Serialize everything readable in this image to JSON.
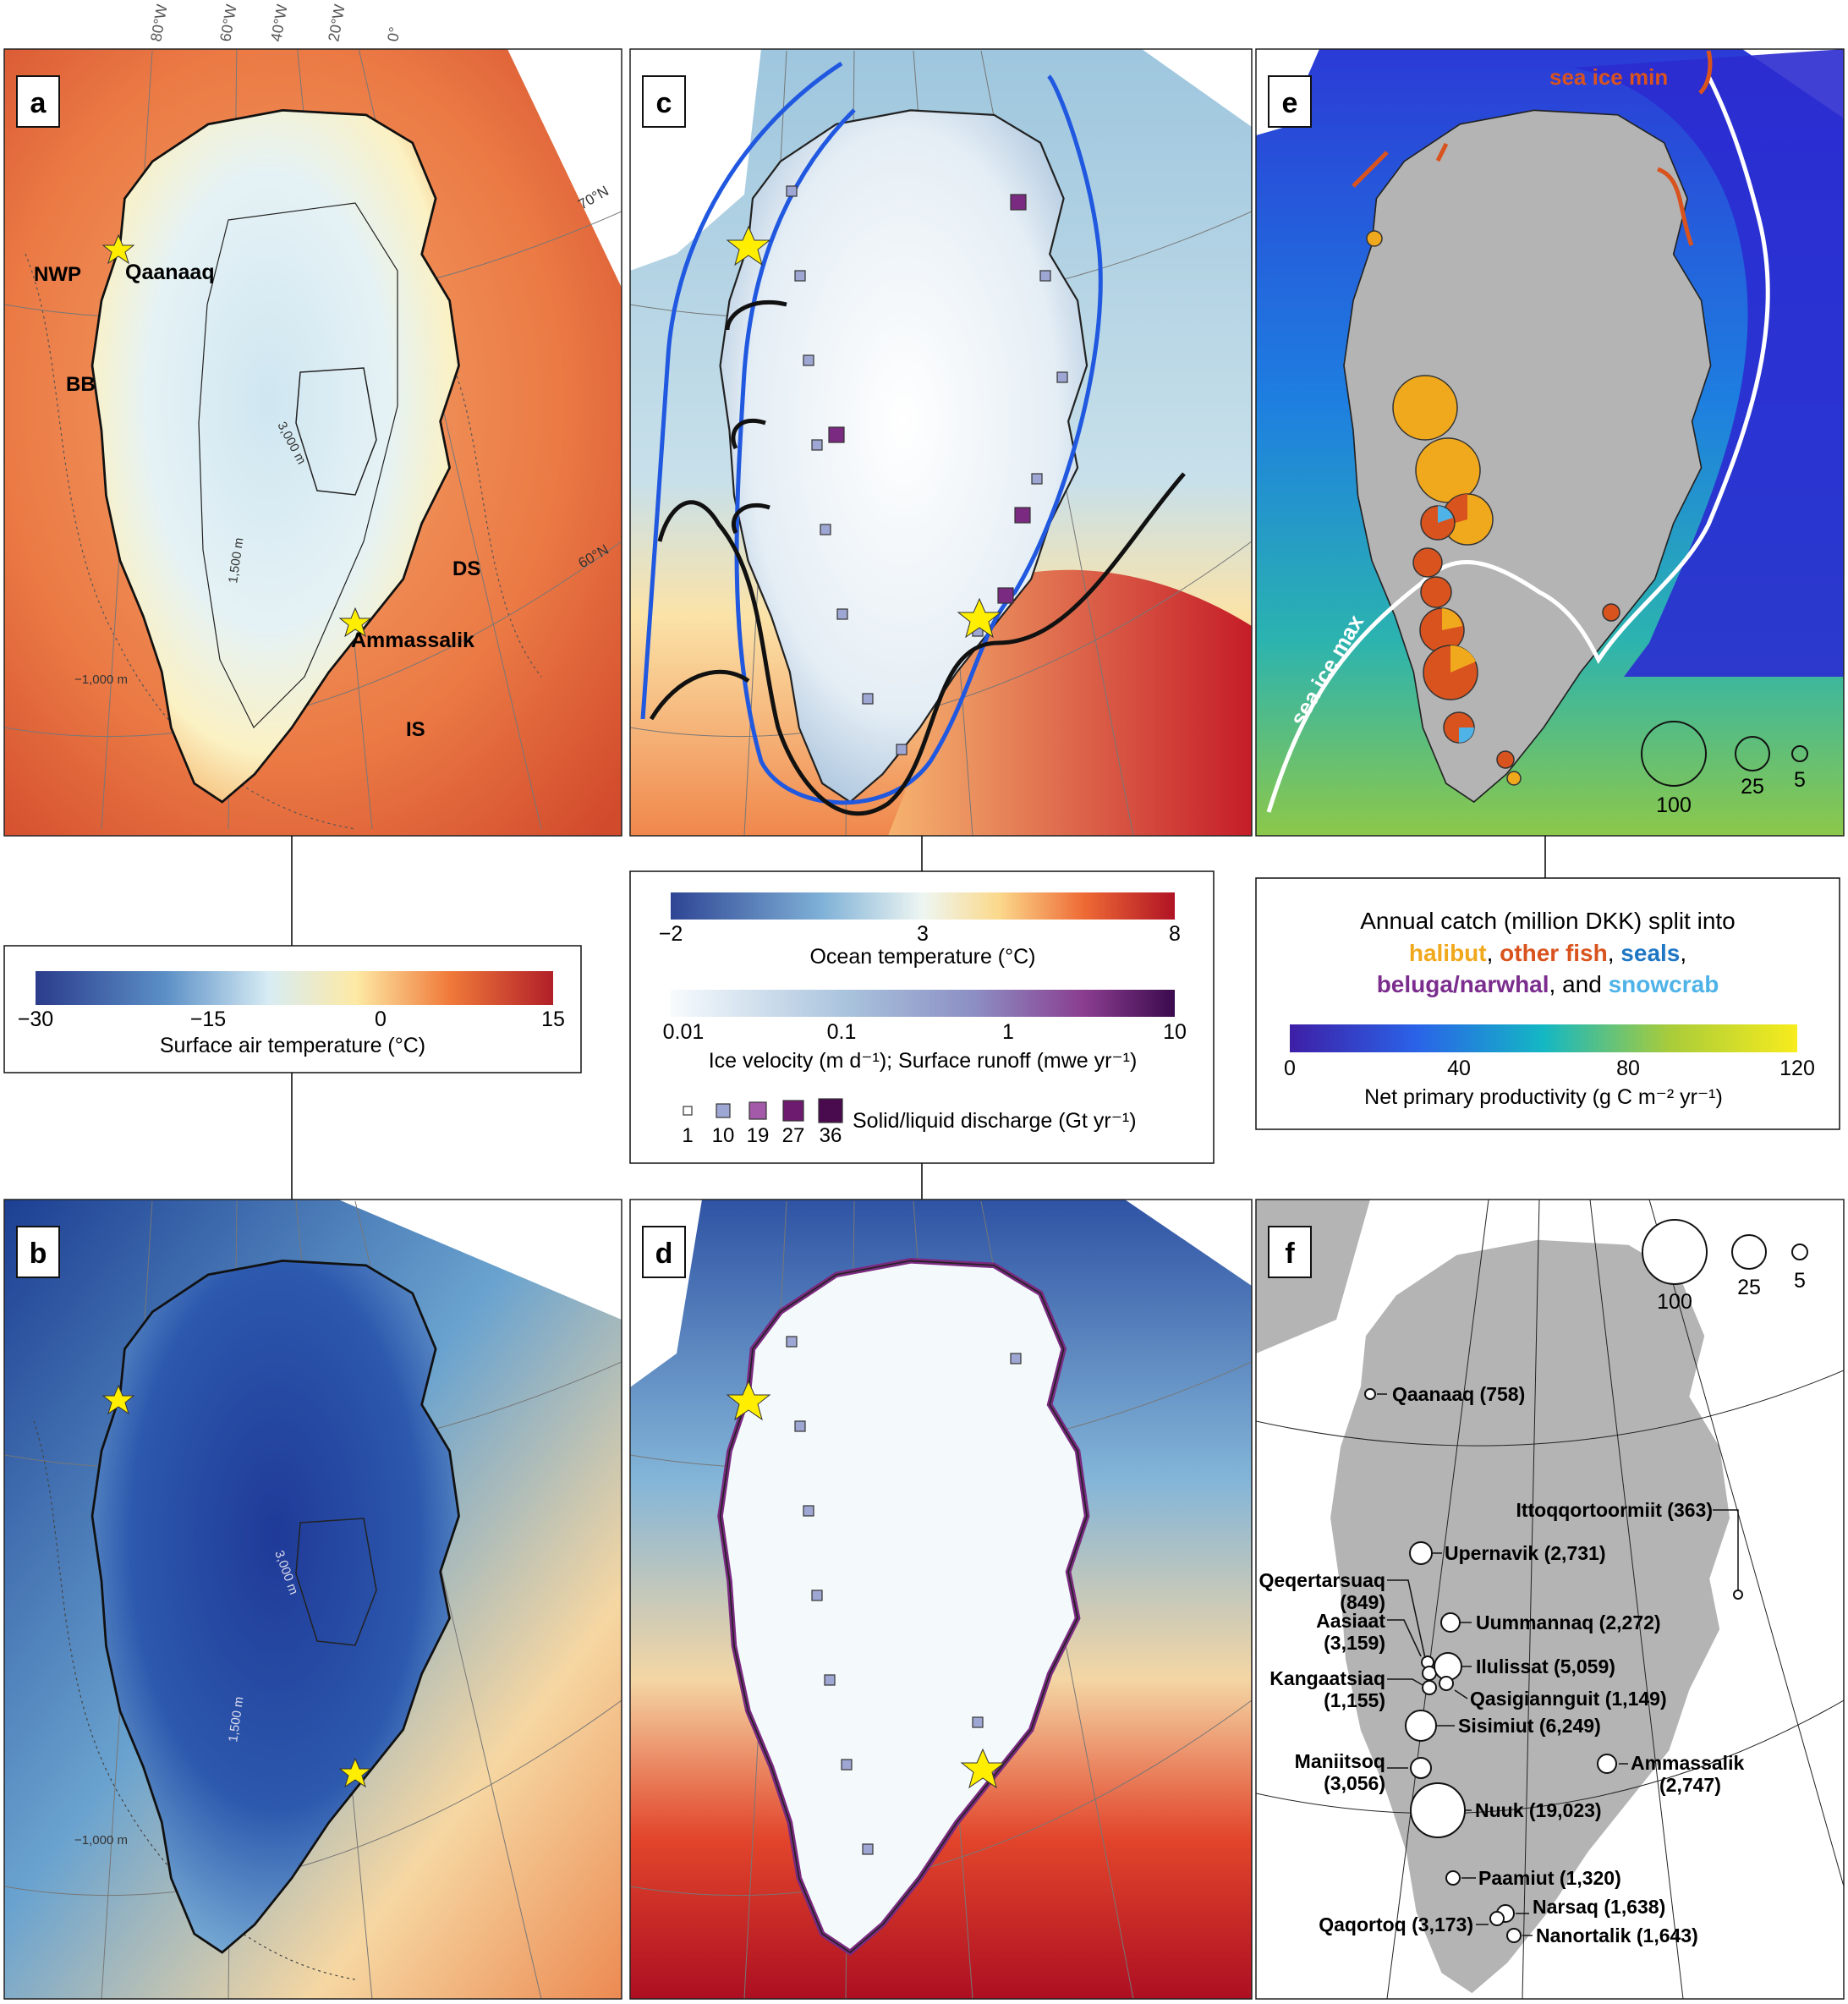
{
  "graticule_labels": [
    "80°W",
    "60°W",
    "40°W",
    "20°W",
    "0°"
  ],
  "lat_labels": [
    "70°N",
    "60°N"
  ],
  "panels": {
    "a": {
      "letter": "a",
      "region_labels": [
        "NWP",
        "BB",
        "DS",
        "IS"
      ],
      "place_labels": [
        "Qaanaaq",
        "Ammassalik"
      ],
      "contour_labels": [
        "3,000 m",
        "1,500 m",
        "−1,000 m"
      ]
    },
    "b": {
      "letter": "b",
      "contour_labels": [
        "3,000 m",
        "1,500 m",
        "−1,000 m"
      ]
    },
    "c": {
      "letter": "c"
    },
    "d": {
      "letter": "d"
    },
    "e": {
      "letter": "e",
      "sea_ice_labels": [
        "sea ice min",
        "sea ice max"
      ],
      "size_legend": [
        "100",
        "25",
        "5"
      ]
    },
    "f": {
      "letter": "f",
      "size_legend": [
        "100",
        "25",
        "5"
      ],
      "towns": [
        "Qaanaaq (758)",
        "Ittoqqortoormiit (363)",
        "Upernavik (2,731)",
        "Qeqertarsuaq",
        "(849)",
        "Uummannaq (2,272)",
        "Aasiaat",
        "(3,159)",
        "Ilulissat (5,059)",
        "Kangaatsiaq",
        "(1,155)",
        "Qasigiannguit (1,149)",
        "Sisimiut (6,249)",
        "Maniitsoq",
        "(3,056)",
        "Ammassalik",
        "(2,747)",
        "Nuuk (19,023)",
        "Paamiut (1,320)",
        "Narsaq (1,638)",
        "Qaqortoq (3,173)",
        "Nanortalik (1,643)"
      ]
    }
  },
  "legends": {
    "air_temp": {
      "ticks": [
        "−30",
        "−15",
        "0",
        "15"
      ],
      "label": "Surface air temperature (°C)"
    },
    "ocean_temp": {
      "ticks": [
        "−2",
        "3",
        "8"
      ],
      "label": "Ocean temperature (°C)"
    },
    "ice_velocity": {
      "ticks": [
        "0.01",
        "0.1",
        "1",
        "10"
      ],
      "label": "Ice velocity (m d⁻¹); Surface runoff (mwe yr⁻¹)"
    },
    "discharge": {
      "values": [
        "1",
        "10",
        "19",
        "27",
        "36"
      ],
      "label": "Solid/liquid discharge (Gt yr⁻¹)"
    },
    "catch": {
      "line1": "Annual catch (million DKK) split into",
      "halibut": "halibut",
      "sep1": ", ",
      "other_fish": "other fish",
      "sep2": ", ",
      "seals": "seals",
      "sep3": ",",
      "beluga": "beluga/narwhal",
      "sep4": ", and ",
      "snowcrab": "snowcrab",
      "ticks": [
        "0",
        "40",
        "80",
        "120"
      ],
      "label": "Net primary productivity (g C m⁻² yr⁻¹)"
    }
  },
  "colors": {
    "halibut": "#f0a81c",
    "other_fish": "#d9531e",
    "seals": "#1f77c4",
    "beluga": "#7b2d8e",
    "snowcrab": "#4fb3e8",
    "land_gray": "#b4b4b4",
    "star": "#ffee00"
  }
}
